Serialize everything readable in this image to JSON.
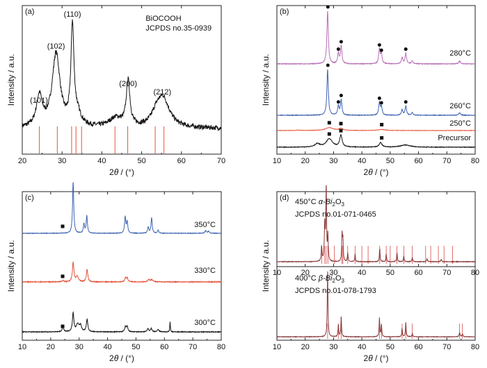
{
  "figure": {
    "ylabel": "Intensity / a.u.",
    "xlabel_base": "2",
    "xlabel_theta": "θ",
    "xlabel_unit": " / (°)"
  },
  "chart_data": [
    {
      "id": "a",
      "type": "line",
      "panel_label": "(a)",
      "xlim": [
        20,
        70
      ],
      "xticks": [
        20,
        30,
        40,
        50,
        60,
        70
      ],
      "reference_text": [
        "BiOCOOH",
        "JCPDS no.35-0939"
      ],
      "peak_labels": [
        {
          "text": "(101)",
          "x": 24.2
        },
        {
          "text": "(102)",
          "x": 28.5
        },
        {
          "text": "(110)",
          "x": 32.6
        },
        {
          "text": "(200)",
          "x": 46.6
        },
        {
          "text": "(212)",
          "x": 55.2
        }
      ],
      "reference_lines": [
        24.3,
        28.8,
        32.4,
        33.5,
        34.9,
        43.3,
        46.5,
        53.4,
        55.6
      ],
      "series": [
        {
          "color": "#111111",
          "peaks": [
            [
              24.3,
              0.26,
              0.9
            ],
            [
              28.5,
              0.62,
              1.2
            ],
            [
              32.6,
              0.82,
              0.45
            ],
            [
              33.8,
              0.1,
              1.2
            ],
            [
              46.6,
              0.38,
              0.55
            ],
            [
              43.5,
              0.08,
              2.0
            ],
            [
              55.3,
              0.26,
              2.0
            ],
            [
              53.5,
              0.06,
              1.2
            ]
          ],
          "baseline": 0.04,
          "noise": 0.02
        }
      ]
    },
    {
      "id": "b",
      "type": "line",
      "panel_label": "(b)",
      "xlim": [
        10,
        80
      ],
      "xticks": [
        10,
        20,
        30,
        40,
        50,
        60,
        70,
        80
      ],
      "series": [
        {
          "name": "Precursor",
          "label": "Precursor",
          "color": "#111111",
          "peaks": [
            [
              24.3,
              0.12,
              1.0
            ],
            [
              28.5,
              0.3,
              1.3
            ],
            [
              32.6,
              0.42,
              0.5
            ],
            [
              46.6,
              0.16,
              0.6
            ],
            [
              55.3,
              0.08,
              2.0
            ]
          ],
          "baseline": 0.0,
          "noise": 0.01
        },
        {
          "name": "250°C",
          "label": "250°C",
          "color": "#e5533a",
          "peaks": [
            [
              28.5,
              0.14,
              1.6
            ],
            [
              32.6,
              0.1,
              0.8
            ],
            [
              47.0,
              0.05,
              1.5
            ],
            [
              17.5,
              0.02,
              0.6
            ]
          ],
          "baseline": 0.0,
          "noise": 0.008
        },
        {
          "name": "260°C",
          "label": "260°C",
          "color": "#3d63b0",
          "peaks": [
            [
              27.9,
              1.0,
              0.3
            ],
            [
              31.7,
              0.2,
              0.3
            ],
            [
              32.7,
              0.34,
              0.3
            ],
            [
              46.2,
              0.28,
              0.3
            ],
            [
              46.9,
              0.18,
              0.3
            ],
            [
              54.2,
              0.12,
              0.3
            ],
            [
              55.5,
              0.2,
              0.3
            ],
            [
              57.8,
              0.06,
              0.3
            ],
            [
              74.5,
              0.05,
              0.4
            ]
          ],
          "baseline": 0.0,
          "noise": 0.006
        },
        {
          "name": "280°C",
          "label": "280°C",
          "color": "#b86fb8",
          "peaks": [
            [
              27.9,
              1.0,
              0.3
            ],
            [
              31.7,
              0.2,
              0.3
            ],
            [
              32.7,
              0.34,
              0.3
            ],
            [
              46.2,
              0.28,
              0.3
            ],
            [
              46.9,
              0.18,
              0.3
            ],
            [
              54.2,
              0.12,
              0.3
            ],
            [
              55.5,
              0.2,
              0.3
            ],
            [
              57.8,
              0.06,
              0.3
            ],
            [
              74.5,
              0.05,
              0.4
            ]
          ],
          "baseline": 0.0,
          "noise": 0.006
        }
      ],
      "markers": {
        "circle": [
          28.0,
          31.7,
          32.7,
          46.2,
          46.9,
          55.5
        ],
        "square": [
          28.5,
          32.6,
          47.0
        ]
      }
    },
    {
      "id": "c",
      "type": "line",
      "panel_label": "(c)",
      "xlim": [
        10,
        80
      ],
      "xticks": [
        10,
        20,
        30,
        40,
        50,
        60,
        70,
        80
      ],
      "series": [
        {
          "name": "300°C",
          "label": "300°C",
          "color": "#111111",
          "peaks": [
            [
              24.3,
              0.12,
              0.3
            ],
            [
              27.9,
              0.45,
              0.3
            ],
            [
              29.5,
              0.18,
              0.6
            ],
            [
              30.5,
              0.14,
              0.4
            ],
            [
              32.8,
              0.3,
              0.3
            ],
            [
              46.3,
              0.12,
              0.3
            ],
            [
              46.9,
              0.12,
              0.3
            ],
            [
              54.2,
              0.08,
              0.3
            ],
            [
              55.4,
              0.08,
              0.3
            ],
            [
              57.8,
              0.06,
              0.3
            ],
            [
              62.0,
              0.24,
              0.12
            ]
          ],
          "baseline": 0.0,
          "noise": 0.008
        },
        {
          "name": "330°C",
          "label": "330°C",
          "color": "#e5533a",
          "peaks": [
            [
              24.3,
              0.04,
              0.3
            ],
            [
              27.9,
              0.5,
              0.3
            ],
            [
              29.3,
              0.14,
              0.5
            ],
            [
              32.8,
              0.32,
              0.3
            ],
            [
              46.3,
              0.1,
              0.3
            ],
            [
              46.9,
              0.1,
              0.3
            ],
            [
              54.5,
              0.06,
              0.4
            ],
            [
              55.6,
              0.06,
              0.4
            ]
          ],
          "baseline": 0.0,
          "noise": 0.01
        },
        {
          "name": "350°C",
          "label": "350°C",
          "color": "#3d63b0",
          "peaks": [
            [
              27.9,
              1.0,
              0.25
            ],
            [
              31.7,
              0.18,
              0.25
            ],
            [
              32.7,
              0.34,
              0.25
            ],
            [
              46.2,
              0.32,
              0.25
            ],
            [
              46.9,
              0.22,
              0.25
            ],
            [
              54.3,
              0.12,
              0.25
            ],
            [
              55.5,
              0.3,
              0.25
            ],
            [
              57.8,
              0.06,
              0.25
            ],
            [
              74.5,
              0.05,
              0.3
            ],
            [
              75.5,
              0.04,
              0.3
            ]
          ],
          "baseline": 0.0,
          "noise": 0.005
        }
      ],
      "markers": {
        "square": [
          24.2,
          24.2,
          24.2
        ]
      }
    },
    {
      "id": "d",
      "type": "line",
      "panel_label": "(d)",
      "xlim": [
        10,
        80
      ],
      "xticks": [
        10,
        20,
        30,
        40,
        50,
        60,
        70,
        80
      ],
      "subplots": [
        {
          "title_text": [
            "450°C",
            "α-Bi",
            "2",
            "O",
            "3"
          ],
          "reference": "JCPDS no.01-071-0465",
          "color": "#8a3a3a",
          "peaks": [
            [
              25.8,
              0.2,
              0.18
            ],
            [
              26.9,
              0.5,
              0.18
            ],
            [
              27.4,
              1.0,
              0.15
            ],
            [
              28.0,
              0.35,
              0.15
            ],
            [
              33.0,
              0.36,
              0.15
            ],
            [
              33.3,
              0.3,
              0.15
            ],
            [
              35.0,
              0.12,
              0.15
            ],
            [
              37.6,
              0.1,
              0.15
            ],
            [
              46.3,
              0.18,
              0.15
            ],
            [
              48.6,
              0.1,
              0.15
            ],
            [
              52.4,
              0.12,
              0.15
            ],
            [
              54.8,
              0.08,
              0.15
            ],
            [
              57.8,
              0.06,
              0.15
            ],
            [
              63.0,
              0.04,
              0.2
            ],
            [
              68.0,
              0.03,
              0.2
            ]
          ],
          "ref_lines": [
            25.8,
            26.9,
            27.4,
            28.0,
            30.3,
            33.0,
            33.3,
            35.0,
            37.6,
            40.0,
            42.2,
            46.3,
            48.6,
            50.0,
            52.4,
            54.8,
            57.8,
            62.5,
            64.3,
            67.0,
            69.0,
            72.0
          ]
        },
        {
          "title_text": [
            "400°C",
            "β-Bi",
            "2",
            "O",
            "3"
          ],
          "reference": "JCPDS no.01-078-1793",
          "color": "#8a3a3a",
          "peaks": [
            [
              27.9,
              1.0,
              0.15
            ],
            [
              31.7,
              0.18,
              0.15
            ],
            [
              32.7,
              0.3,
              0.15
            ],
            [
              46.2,
              0.28,
              0.15
            ],
            [
              46.9,
              0.18,
              0.15
            ],
            [
              54.2,
              0.12,
              0.15
            ],
            [
              55.5,
              0.22,
              0.15
            ],
            [
              57.8,
              0.05,
              0.15
            ],
            [
              74.5,
              0.06,
              0.2
            ],
            [
              75.5,
              0.04,
              0.2
            ]
          ],
          "ref_lines": [
            27.9,
            31.7,
            32.7,
            46.2,
            46.9,
            54.2,
            55.5,
            57.8,
            74.5,
            75.5
          ]
        }
      ]
    }
  ]
}
